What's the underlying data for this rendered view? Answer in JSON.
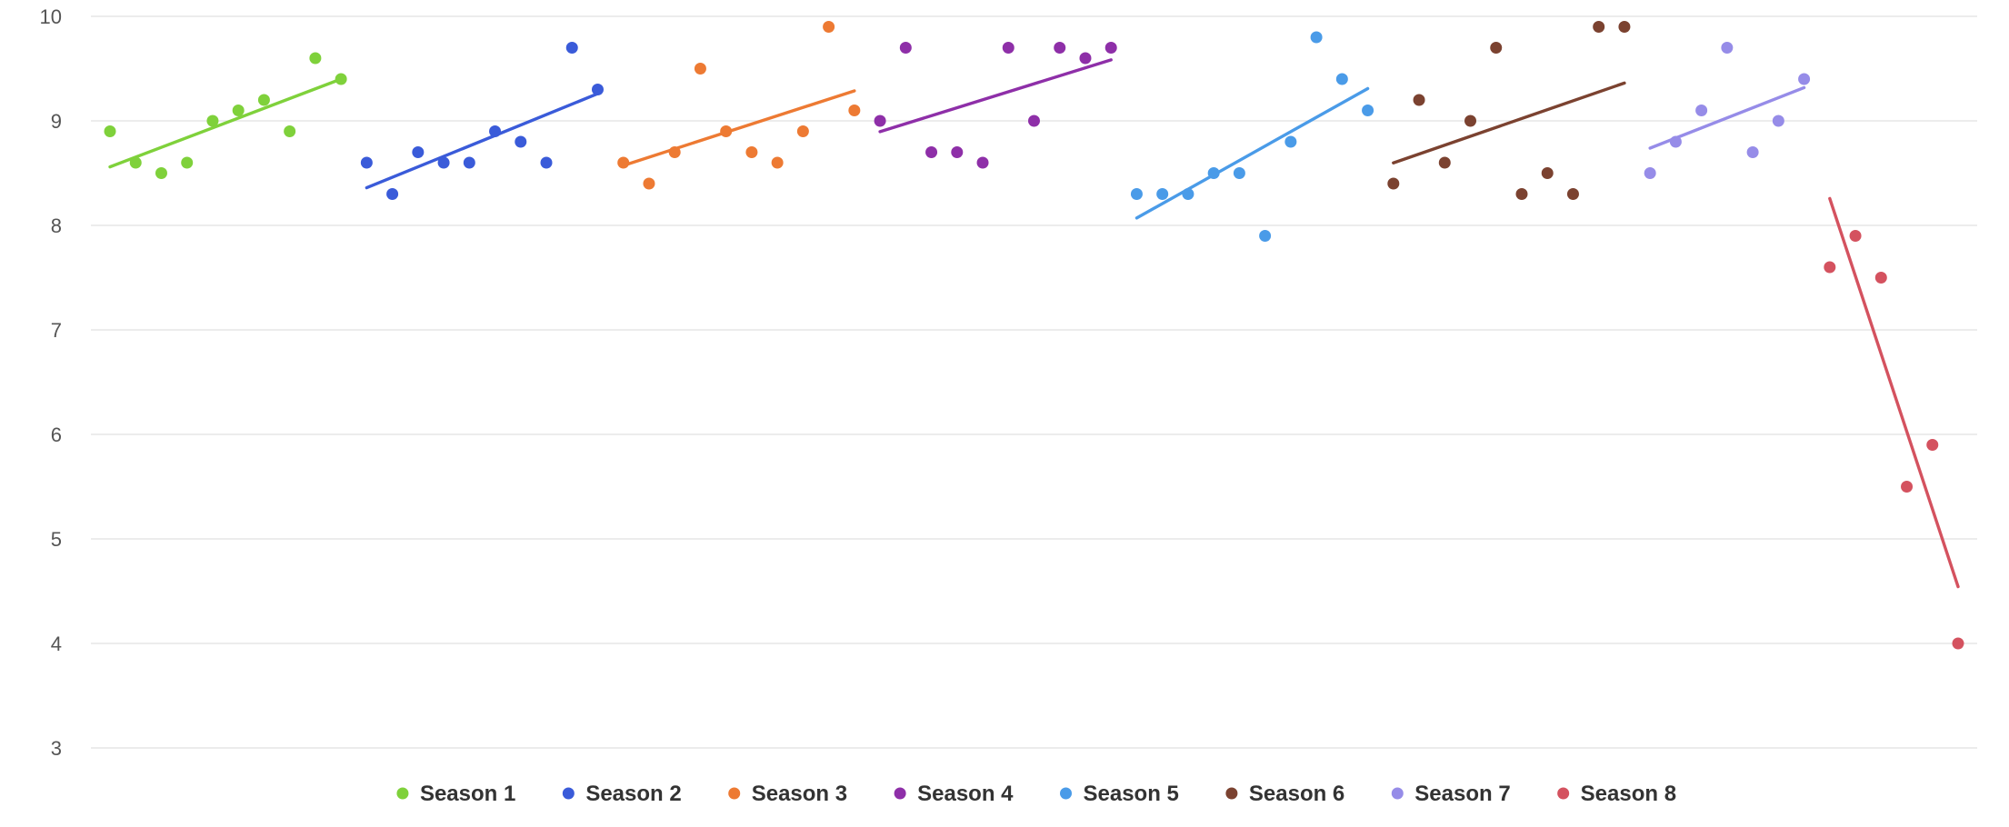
{
  "chart_data": {
    "type": "scatter",
    "title": "",
    "xlabel": "",
    "ylabel": "",
    "ylim": [
      3,
      10
    ],
    "yticks": [
      3,
      4,
      5,
      6,
      7,
      8,
      9,
      10
    ],
    "grid": true,
    "legend_position": "bottom-center",
    "x_tick_labels": "none",
    "series": [
      {
        "name": "Season 1",
        "color": "#7fd13b",
        "x": [
          1,
          2,
          3,
          4,
          5,
          6,
          7,
          8,
          9,
          10
        ],
        "values": [
          8.9,
          8.6,
          8.5,
          8.6,
          9.0,
          9.1,
          9.2,
          8.9,
          9.6,
          9.4
        ],
        "trendline": true
      },
      {
        "name": "Season 2",
        "color": "#3a5bd9",
        "x": [
          11,
          12,
          13,
          14,
          15,
          16,
          17,
          18,
          19,
          20
        ],
        "values": [
          8.6,
          8.3,
          8.7,
          8.6,
          8.6,
          8.9,
          8.8,
          8.6,
          9.7,
          9.3
        ],
        "trendline": true
      },
      {
        "name": "Season 3",
        "color": "#ed7a33",
        "x": [
          21,
          22,
          23,
          24,
          25,
          26,
          27,
          28,
          29,
          30
        ],
        "values": [
          8.6,
          8.4,
          8.7,
          9.5,
          8.9,
          8.7,
          8.6,
          8.9,
          9.9,
          9.1
        ],
        "trendline": true
      },
      {
        "name": "Season 4",
        "color": "#8e2fa8",
        "x": [
          31,
          32,
          33,
          34,
          35,
          36,
          37,
          38,
          39,
          40
        ],
        "values": [
          9.0,
          9.7,
          8.7,
          8.7,
          8.6,
          9.7,
          9.0,
          9.7,
          9.6,
          9.7
        ],
        "trendline": true
      },
      {
        "name": "Season 5",
        "color": "#4a9be8",
        "x": [
          41,
          42,
          43,
          44,
          45,
          46,
          47,
          48,
          49,
          50
        ],
        "values": [
          8.3,
          8.3,
          8.3,
          8.5,
          8.5,
          7.9,
          8.8,
          9.8,
          9.4,
          9.1
        ],
        "trendline": true
      },
      {
        "name": "Season 6",
        "color": "#7b4230",
        "x": [
          51,
          52,
          53,
          54,
          55,
          56,
          57,
          58,
          59,
          60
        ],
        "values": [
          8.4,
          9.2,
          8.6,
          9.0,
          9.7,
          8.3,
          8.5,
          8.3,
          9.9,
          9.9
        ],
        "trendline": true
      },
      {
        "name": "Season 7",
        "color": "#968ce8",
        "x": [
          61,
          62,
          63,
          64,
          65,
          66,
          67
        ],
        "values": [
          8.5,
          8.8,
          9.1,
          9.7,
          8.7,
          9.0,
          9.4
        ],
        "trendline": true
      },
      {
        "name": "Season 8",
        "color": "#d4525f",
        "x": [
          68,
          69,
          70,
          71,
          72,
          73
        ],
        "values": [
          7.6,
          7.9,
          7.5,
          5.5,
          5.9,
          4.0
        ],
        "trendline": true
      }
    ]
  }
}
